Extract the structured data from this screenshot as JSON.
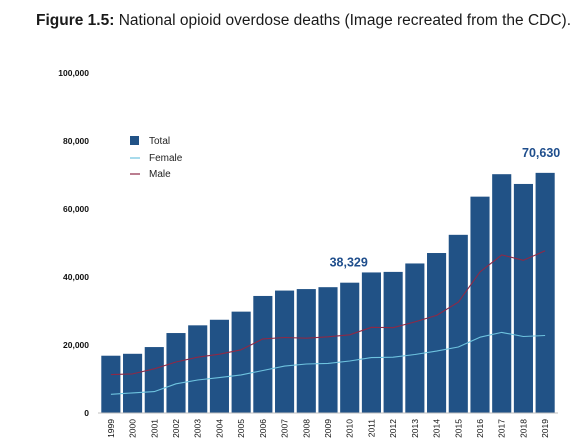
{
  "caption": {
    "label": "Figure 1.5:",
    "text": " National opioid overdose deaths (Image recreated from the CDC)."
  },
  "colors": {
    "bar": "#215286",
    "female": "#6ec3df",
    "male": "#8e2946"
  },
  "chart_data": {
    "type": "bar",
    "title": "",
    "xlabel": "",
    "ylabel": "",
    "ylim": [
      0,
      100000
    ],
    "yticks": [
      0,
      20000,
      40000,
      60000,
      80000,
      100000
    ],
    "ytick_labels": [
      "0",
      "20,000",
      "40,000",
      "60,000",
      "80,000",
      "100,000"
    ],
    "categories": [
      "1999",
      "2000",
      "2001",
      "2002",
      "2003",
      "2004",
      "2005",
      "2006",
      "2007",
      "2008",
      "2009",
      "2010",
      "2011",
      "2012",
      "2013",
      "2014",
      "2015",
      "2016",
      "2017",
      "2018",
      "2019"
    ],
    "series": [
      {
        "name": "Total",
        "type": "bar",
        "values": [
          16849,
          17415,
          19394,
          23518,
          25785,
          27424,
          29813,
          34425,
          36010,
          36450,
          37004,
          38329,
          41340,
          41502,
          43982,
          47055,
          52404,
          63632,
          70237,
          67367,
          70630
        ]
      },
      {
        "name": "Female",
        "type": "line",
        "values": [
          5500,
          5900,
          6300,
          8600,
          9700,
          10400,
          11200,
          12500,
          13800,
          14400,
          14600,
          15300,
          16300,
          16400,
          17200,
          18200,
          19400,
          22300,
          23700,
          22500,
          22800
        ]
      },
      {
        "name": "Male",
        "type": "line",
        "values": [
          11300,
          11500,
          13000,
          15000,
          16400,
          17300,
          18600,
          21800,
          22200,
          22000,
          22400,
          23000,
          25200,
          25100,
          26800,
          28700,
          32600,
          41500,
          46500,
          44900,
          47700
        ]
      }
    ],
    "annotations": [
      {
        "category": "2010",
        "text": "38,329"
      },
      {
        "category": "2019",
        "text": "70,630"
      }
    ],
    "legend": {
      "placement": "top-left"
    },
    "grid": false
  }
}
